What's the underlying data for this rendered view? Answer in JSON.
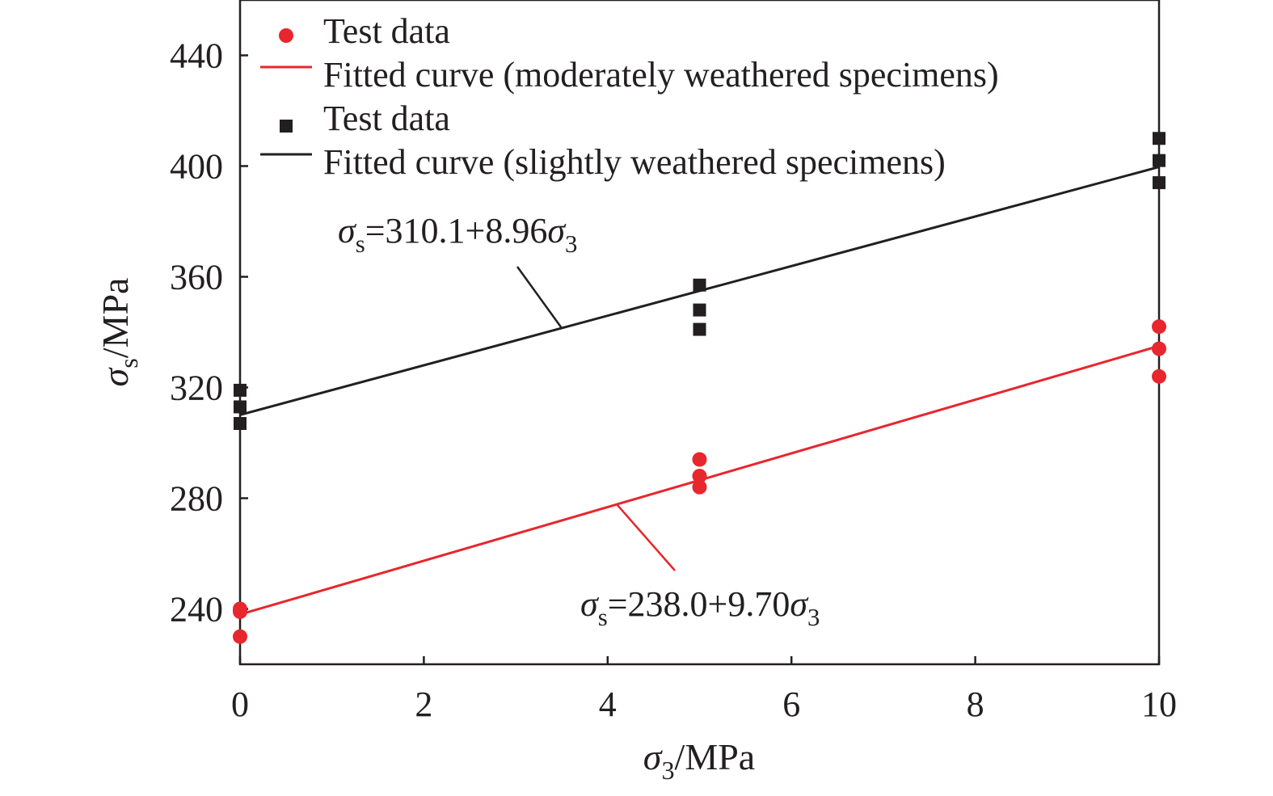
{
  "chart_data": {
    "type": "scatter",
    "xlabel": "σ3/MPa",
    "ylabel": "σs/MPa",
    "xlim": [
      0,
      10
    ],
    "ylim": [
      220,
      460
    ],
    "x_ticks": [
      0,
      2,
      4,
      6,
      8,
      10
    ],
    "y_ticks": [
      240,
      280,
      320,
      360,
      400,
      440
    ],
    "grid": false,
    "legend_position": "top-left",
    "series": [
      {
        "name": "Test data",
        "kind": "points",
        "marker": "circle",
        "color": "#e8262d",
        "points": [
          {
            "x": 0,
            "y": 240
          },
          {
            "x": 0,
            "y": 239
          },
          {
            "x": 0,
            "y": 230
          },
          {
            "x": 5,
            "y": 294
          },
          {
            "x": 5,
            "y": 288
          },
          {
            "x": 5,
            "y": 284
          },
          {
            "x": 10,
            "y": 342
          },
          {
            "x": 10,
            "y": 334
          },
          {
            "x": 10,
            "y": 324
          }
        ]
      },
      {
        "name": "Fitted curve (moderately weathered specimens)",
        "kind": "line",
        "color": "#e8262d",
        "intercept": 238.0,
        "slope": 9.7,
        "x_range": [
          0,
          10
        ]
      },
      {
        "name": "Test data",
        "kind": "points",
        "marker": "square",
        "color": "#231f20",
        "points": [
          {
            "x": 0,
            "y": 319
          },
          {
            "x": 0,
            "y": 313
          },
          {
            "x": 0,
            "y": 307
          },
          {
            "x": 5,
            "y": 357
          },
          {
            "x": 5,
            "y": 348
          },
          {
            "x": 5,
            "y": 341
          },
          {
            "x": 10,
            "y": 410
          },
          {
            "x": 10,
            "y": 402
          },
          {
            "x": 10,
            "y": 394
          }
        ]
      },
      {
        "name": "Fitted curve (slightly weathered specimens)",
        "kind": "line",
        "color": "#231f20",
        "intercept": 310.1,
        "slope": 8.96,
        "x_range": [
          0,
          10
        ]
      }
    ],
    "annotations": [
      {
        "text": "σs=310.1+8.96σ3",
        "series": "Fitted curve (slightly weathered specimens)",
        "pointer_to_x": 3.5,
        "color": "#231f20"
      },
      {
        "text": "σs=238.0+9.70σ3",
        "series": "Fitted curve (moderately weathered specimens)",
        "pointer_to_x": 4.1,
        "color": "#e8262d"
      }
    ]
  }
}
